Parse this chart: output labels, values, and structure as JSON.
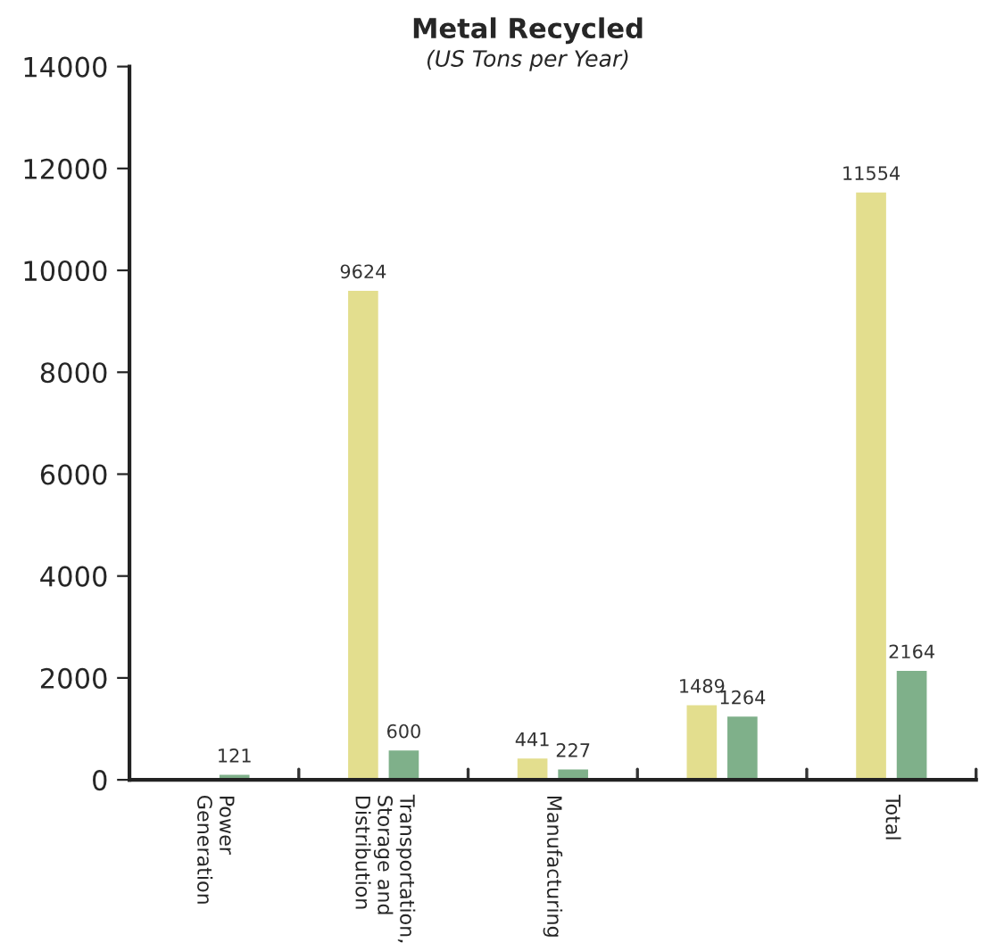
{
  "chart_data": {
    "type": "bar",
    "title": "Metal Recycled",
    "subtitle": "(US Tons per Year)",
    "categories": [
      "Power\nGeneration",
      "Transportation,\nStorage and\nDistribution",
      "Manufacturing",
      null,
      "Total"
    ],
    "series": [
      {
        "color": "#e3de8e",
        "values": [
          null,
          9624,
          441,
          1489,
          11554
        ],
        "value_labels": [
          null,
          "9624",
          "441",
          "1489",
          "11554"
        ]
      },
      {
        "color": "#7fb08a",
        "values": [
          121,
          600,
          227,
          1264,
          2164
        ],
        "value_labels": [
          "121",
          "600",
          "227",
          "1264",
          "2164"
        ]
      }
    ],
    "ylim": [
      0,
      14000
    ],
    "yticks": [
      0,
      2000,
      4000,
      6000,
      8000,
      10000,
      12000,
      14000
    ],
    "grid": false,
    "legend": false
  }
}
